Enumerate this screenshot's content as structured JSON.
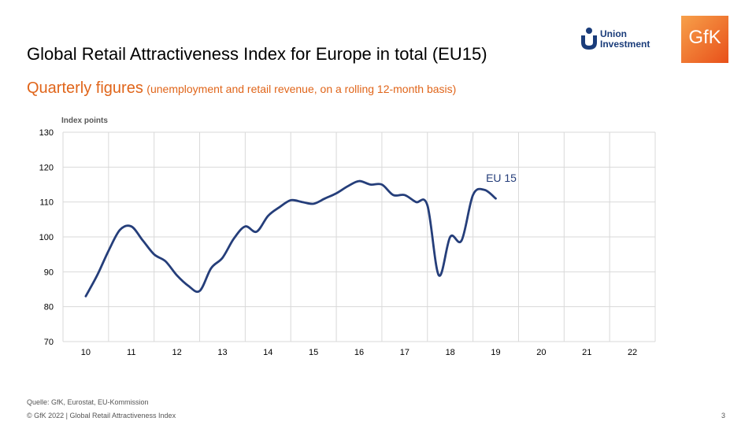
{
  "slide": {
    "title": "Global Retail Attractiveness Index for Europe in total (EU15)",
    "subtitle_main": "Quarterly figures",
    "subtitle_note": "(unemployment  and retail revenue,  on a rolling 12-month basis)",
    "source": "Quelle: GfK, Eurostat, EU-Kommission",
    "copyright": "© GfK 2022 | Global Retail Attractiveness Index",
    "page_number": "3"
  },
  "logos": {
    "union_investment_line1": "Union",
    "union_investment_line2": "Investment",
    "gfk": "GfK"
  },
  "colors": {
    "line": "#253e7a",
    "subtitle": "#e0651a",
    "grid": "#d9d9d9",
    "gfk_orange": "#ef6a1e",
    "union_blue": "#1a3c7a"
  },
  "chart_data": {
    "type": "line",
    "ylabel": "Index points",
    "ylim": [
      70,
      130
    ],
    "yticks": [
      70,
      80,
      90,
      100,
      110,
      120,
      130
    ],
    "categories": [
      "10",
      "11",
      "12",
      "13",
      "14",
      "15",
      "16",
      "17",
      "18",
      "19",
      "20",
      "21",
      "22"
    ],
    "grid": true,
    "series": [
      {
        "name": "EU 15",
        "x": [
          2010.0,
          2010.25,
          2010.5,
          2010.75,
          2011.0,
          2011.25,
          2011.5,
          2011.75,
          2012.0,
          2012.25,
          2012.5,
          2012.75,
          2013.0,
          2013.25,
          2013.5,
          2013.75,
          2014.0,
          2014.25,
          2014.5,
          2014.75,
          2015.0,
          2015.25,
          2015.5,
          2015.75,
          2016.0,
          2016.25,
          2016.5,
          2016.75,
          2017.0,
          2017.25,
          2017.5,
          2017.75,
          2018.0,
          2018.25,
          2018.5,
          2018.75,
          2019.0,
          2019.25,
          2019.5,
          2019.75,
          2020.0,
          2020.25,
          2020.5,
          2020.75,
          2021.0,
          2021.25,
          2021.5,
          2021.75,
          2022.0
        ],
        "values": [
          83,
          89,
          96,
          102,
          103,
          99,
          95,
          93,
          89,
          86,
          84.5,
          91,
          94,
          99.5,
          103,
          101.5,
          106,
          108.5,
          110.5,
          110,
          109.5,
          111,
          112.5,
          114.5,
          116,
          115,
          115,
          112,
          112,
          110,
          109,
          89,
          100,
          99,
          112,
          113.5,
          111,
          null,
          null,
          null,
          null,
          null,
          null,
          null,
          null,
          null,
          null,
          null,
          null
        ],
        "annotation": "EU 15"
      }
    ]
  }
}
